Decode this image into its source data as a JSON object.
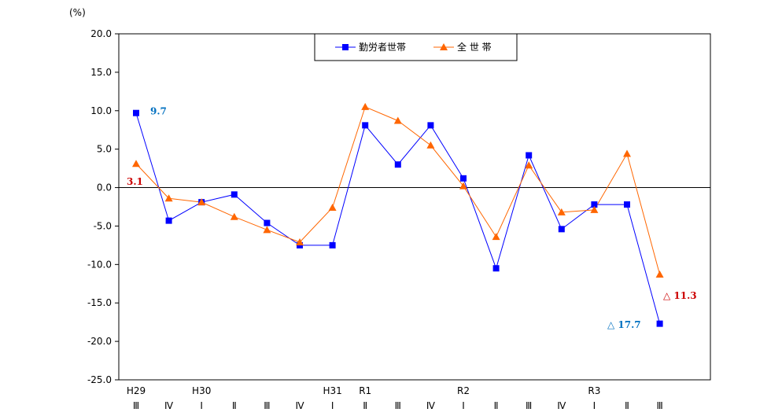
{
  "chart_data": {
    "type": "line",
    "unit_label": "(%)",
    "ylim": [
      -25,
      20
    ],
    "yticks": [
      "20.0",
      "15.0",
      "10.0",
      "5.0",
      "0.0",
      "-5.0",
      "-10.0",
      "-15.0",
      "-20.0",
      "-25.0"
    ],
    "ytick_values": [
      20,
      15,
      10,
      5,
      0,
      -5,
      -10,
      -15,
      -20,
      -25
    ],
    "categories": [
      "Ⅲ",
      "Ⅳ",
      "Ⅰ",
      "Ⅱ",
      "Ⅲ",
      "Ⅳ",
      "Ⅰ",
      "Ⅱ",
      "Ⅲ",
      "Ⅳ",
      "Ⅰ",
      "Ⅱ",
      "Ⅲ",
      "Ⅳ",
      "Ⅰ",
      "Ⅱ",
      "Ⅲ"
    ],
    "year_labels": [
      "H29",
      "",
      "H30",
      "",
      "",
      "",
      "H31",
      "R1",
      "",
      "",
      "R2",
      "",
      "",
      "",
      "R3",
      "",
      ""
    ],
    "grid": false,
    "legend_position": "top-center",
    "series": [
      {
        "name": "勤労者世帯",
        "color": "#0000ff",
        "marker": "square",
        "values": [
          9.7,
          -4.3,
          -1.9,
          -0.9,
          -4.6,
          -7.5,
          -7.5,
          8.1,
          3.0,
          8.1,
          1.2,
          -10.5,
          4.2,
          -5.4,
          -2.2,
          -2.2,
          -17.7
        ]
      },
      {
        "name": "全 世 帯",
        "color": "#ff6600",
        "marker": "triangle",
        "values": [
          3.1,
          -1.4,
          -1.9,
          -3.8,
          -5.5,
          -7.1,
          -2.6,
          10.5,
          8.7,
          5.5,
          0.2,
          -6.4,
          2.9,
          -3.2,
          -2.9,
          4.4,
          -11.3
        ]
      }
    ],
    "annotations": [
      {
        "text": "9.7",
        "series": 0,
        "index": 0,
        "color": "#0070c0"
      },
      {
        "text": "3.1",
        "series": 1,
        "index": 0,
        "color": "#cc0000"
      },
      {
        "text": "△ 11.3",
        "series": 1,
        "index": 16,
        "color": "#cc0000"
      },
      {
        "text": "△ 17.7",
        "series": 0,
        "index": 16,
        "color": "#0070c0"
      }
    ]
  }
}
